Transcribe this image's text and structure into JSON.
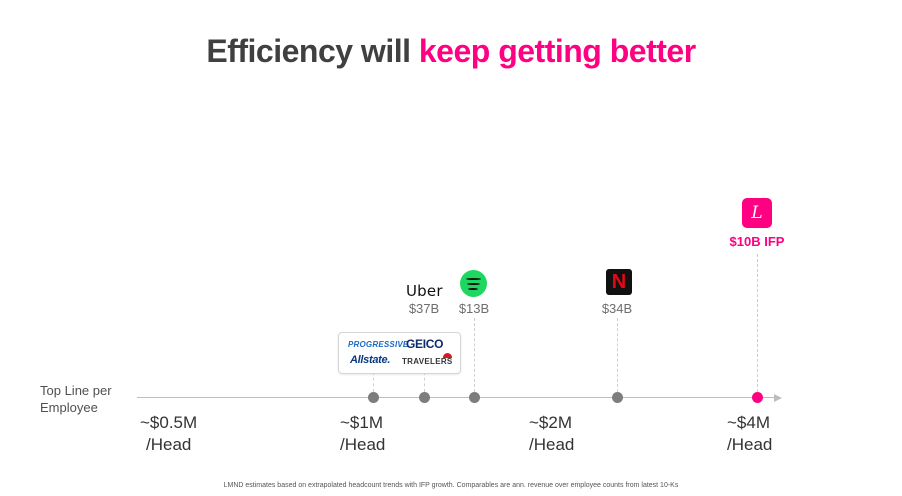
{
  "title": {
    "main": "Efficiency will ",
    "highlight": "keep getting better"
  },
  "axis": {
    "label": "Top Line per Employee"
  },
  "ticks": [
    {
      "value": "~$0.5M",
      "unit": "/Head"
    },
    {
      "value": "~$1M",
      "unit": "/Head"
    },
    {
      "value": "~$2M",
      "unit": "/Head"
    },
    {
      "value": "~$4M",
      "unit": "/Head"
    }
  ],
  "companies": {
    "insurers": {
      "progressive": "PROGRESSIVE",
      "geico": "GEICO",
      "allstate": "Allstate.",
      "travelers": "TRAVELERS"
    },
    "uber": {
      "logo": "Uber",
      "value": "$37B"
    },
    "spotify": {
      "value": "$13B",
      "icon": "spotify-icon"
    },
    "netflix": {
      "logo": "N",
      "value": "$34B"
    },
    "lemonade": {
      "logo": "L",
      "value": "$10B IFP"
    }
  },
  "colors": {
    "accent": "#ff0083",
    "title": "#404040",
    "marker": "#7d7d7d"
  },
  "footnote": "LMND estimates based on extrapolated headcount trends with IFP growth. Comparables are ann. revenue over employee counts from latest 10-Ks"
}
